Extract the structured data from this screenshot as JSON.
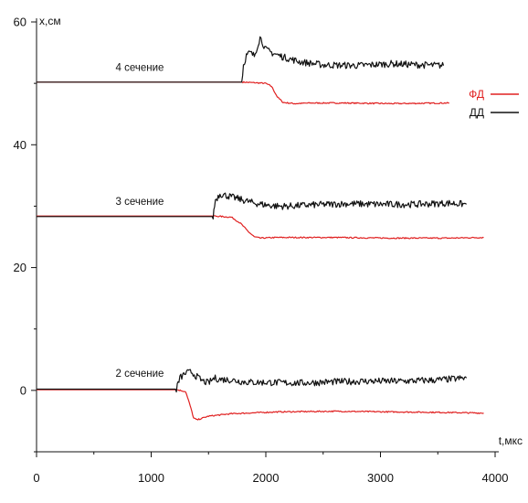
{
  "chart_data": {
    "type": "line",
    "xlabel": "t,мкс",
    "ylabel": "x,см",
    "xlim": [
      0,
      4000
    ],
    "ylim": [
      -10,
      60
    ],
    "x_ticks": [
      "0",
      "1000",
      "2000",
      "3000",
      "4000"
    ],
    "y_ticks": [
      "0",
      "20",
      "40",
      "60"
    ],
    "x_tick_values": [
      0,
      1000,
      2000,
      3000,
      4000
    ],
    "y_tick_values": [
      0,
      20,
      40,
      60
    ],
    "grid": false,
    "legend_position": "right",
    "legend": [
      {
        "name": "ФД",
        "color": "#e02020"
      },
      {
        "name": "ДД",
        "color": "#111111"
      }
    ],
    "annotations": [
      {
        "text": "4 сечение",
        "x": 900,
        "y": 52
      },
      {
        "text": "3 сечение",
        "x": 900,
        "y": 30.2
      },
      {
        "text": "2 сечение",
        "x": 900,
        "y": 2.2
      }
    ],
    "series": [
      {
        "name": "ФД",
        "color": "#e02020",
        "noise": 0.1,
        "segments": [
          {
            "x": [
              0,
              1800,
              2000,
              2050,
              2100,
              2150,
              2250,
              2400,
              2700,
              3100,
              3600
            ],
            "y": [
              50.2,
              50.2,
              50.0,
              49.5,
              47.8,
              46.9,
              46.7,
              46.8,
              46.8,
              46.7,
              46.8
            ]
          },
          {
            "x": [
              0,
              1550,
              1700,
              1780,
              1850,
              1900,
              1950,
              2100,
              2600,
              3100,
              3600,
              3900
            ],
            "y": [
              28.4,
              28.4,
              28.2,
              27.2,
              25.8,
              25.0,
              24.8,
              24.9,
              24.9,
              24.8,
              24.8,
              24.9
            ]
          },
          {
            "x": [
              0,
              1230,
              1300,
              1340,
              1370,
              1400,
              1500,
              1700,
              2100,
              2600,
              3100,
              3600,
              3900
            ],
            "y": [
              0.1,
              0.1,
              -0.2,
              -2.5,
              -4.5,
              -4.8,
              -4.2,
              -3.8,
              -3.5,
              -3.4,
              -3.5,
              -3.6,
              -3.7
            ]
          }
        ]
      },
      {
        "name": "ДД",
        "color": "#111111",
        "noise": 0.25,
        "segments": [
          {
            "x": [
              0,
              1790,
              1805,
              1830,
              1860,
              1900,
              1950,
              2000,
              2050,
              2150,
              2300,
              2500,
              2800,
              3100,
              3350,
              3550
            ],
            "y": [
              50.2,
              50.2,
              53.0,
              54.5,
              55.0,
              54.5,
              57.5,
              55.5,
              55.0,
              54.3,
              53.5,
              53.0,
              52.9,
              53.2,
              53.0,
              52.9
            ]
          },
          {
            "x": [
              0,
              1540,
              1560,
              1600,
              1700,
              1800,
              1900,
              2000,
              2100,
              2200,
              2400,
              2700,
              3000,
              3300,
              3600,
              3750
            ],
            "y": [
              28.3,
              28.3,
              31.0,
              32.0,
              31.5,
              31.0,
              30.5,
              30.2,
              30.0,
              30.0,
              30.2,
              30.4,
              30.3,
              30.3,
              30.5,
              30.3
            ]
          },
          {
            "x": [
              0,
              1220,
              1250,
              1300,
              1350,
              1400,
              1450,
              1500,
              1550,
              1600,
              1700,
              1800,
              1900,
              2000,
              2300,
              2600,
              2900,
              3200,
              3500,
              3750
            ],
            "y": [
              0.2,
              0.2,
              2.0,
              2.8,
              3.0,
              2.2,
              1.5,
              1.2,
              2.0,
              1.8,
              1.7,
              1.4,
              1.3,
              1.3,
              1.2,
              1.4,
              1.5,
              1.5,
              1.7,
              2.0
            ]
          }
        ]
      }
    ]
  }
}
